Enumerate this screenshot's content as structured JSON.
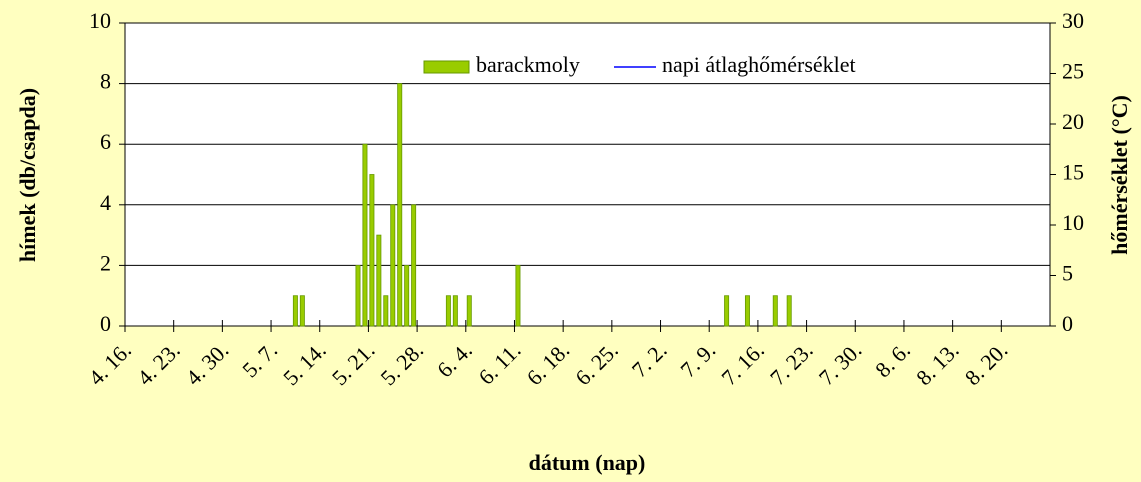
{
  "chart_data": {
    "type": "bar",
    "xlabel": "dátum (nap)",
    "ylabel": "hímek (db/csapda)",
    "y2label": "hőmérséklet (°C)",
    "x": [
      24,
      25,
      33,
      34,
      35,
      36,
      37,
      38,
      39,
      40,
      41,
      46,
      47,
      49,
      56,
      86,
      89,
      93,
      95
    ],
    "series": [
      {
        "name": "barackmoly",
        "color": "#99cc00",
        "values": [
          1,
          1,
          2,
          6,
          5,
          3,
          1,
          4,
          8,
          2,
          4,
          1,
          1,
          1,
          2,
          1,
          1,
          1,
          1
        ]
      },
      {
        "name": "napi átlaghőmérséklet",
        "color": "#0000ff",
        "axis": "y2",
        "values": [
          null,
          null,
          null,
          null,
          null,
          null,
          null,
          null,
          null,
          null,
          null,
          null,
          null,
          null,
          null,
          null,
          null,
          null,
          null
        ]
      }
    ],
    "xlim": [
      0,
      133
    ],
    "xticks": [
      {
        "value": 0,
        "label": "4. 16."
      },
      {
        "value": 7,
        "label": "4. 23."
      },
      {
        "value": 14,
        "label": "4. 30."
      },
      {
        "value": 21,
        "label": "5. 7."
      },
      {
        "value": 28,
        "label": "5. 14."
      },
      {
        "value": 35,
        "label": "5. 21."
      },
      {
        "value": 42,
        "label": "5. 28."
      },
      {
        "value": 49,
        "label": "6. 4."
      },
      {
        "value": 56,
        "label": "6. 11."
      },
      {
        "value": 63,
        "label": "6. 18."
      },
      {
        "value": 70,
        "label": "6. 25."
      },
      {
        "value": 77,
        "label": "7. 2."
      },
      {
        "value": 84,
        "label": "7. 9."
      },
      {
        "value": 91,
        "label": "7. 16."
      },
      {
        "value": 98,
        "label": "7. 23."
      },
      {
        "value": 105,
        "label": "7. 30."
      },
      {
        "value": 112,
        "label": "8. 6."
      },
      {
        "value": 119,
        "label": "8. 13."
      },
      {
        "value": 126,
        "label": "8. 20."
      }
    ],
    "ylim": [
      0,
      10
    ],
    "yticks": [
      0,
      2,
      4,
      6,
      8,
      10
    ],
    "y2lim": [
      0,
      30
    ],
    "y2ticks": [
      0,
      5,
      10,
      15,
      20,
      25,
      30
    ],
    "grid": true,
    "legend": "top"
  }
}
